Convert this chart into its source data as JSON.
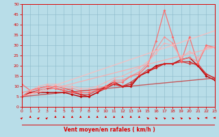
{
  "xlabel": "Vent moyen/en rafales ( km/h )",
  "xlim": [
    0,
    23
  ],
  "ylim": [
    0,
    50
  ],
  "xticks": [
    0,
    1,
    2,
    3,
    4,
    5,
    6,
    7,
    8,
    9,
    10,
    11,
    12,
    13,
    14,
    15,
    16,
    17,
    18,
    19,
    20,
    21,
    22,
    23
  ],
  "yticks": [
    0,
    5,
    10,
    15,
    20,
    25,
    30,
    35,
    40,
    45,
    50
  ],
  "bg_color": "#b8dde8",
  "grid_color": "#8ab8c8",
  "axis_color": "#dd0000",
  "label_color": "#dd0000",
  "lines": [
    {
      "x": [
        0,
        1,
        2,
        3,
        4,
        5,
        6,
        7,
        8,
        9,
        10,
        11,
        12,
        13,
        14,
        15,
        16,
        17,
        18,
        19,
        20,
        21,
        22,
        23
      ],
      "y": [
        5,
        7,
        7,
        7,
        7,
        7,
        6,
        5,
        5,
        7,
        10,
        12,
        10,
        10,
        15,
        17,
        20,
        21,
        21,
        23,
        24,
        20,
        15,
        13
      ],
      "color": "#bb0000",
      "lw": 1.0,
      "marker": "D",
      "ms": 2.0,
      "alpha": 1.0
    },
    {
      "x": [
        0,
        1,
        2,
        3,
        4,
        5,
        6,
        7,
        8,
        9,
        10,
        11,
        12,
        13,
        14,
        15,
        16,
        17,
        18,
        19,
        20,
        21,
        22,
        23
      ],
      "y": [
        5,
        7,
        8,
        9,
        9,
        8,
        7,
        6,
        5,
        7,
        9,
        11,
        10,
        11,
        15,
        17,
        19,
        21,
        21,
        22,
        22,
        20,
        16,
        14
      ],
      "color": "#cc1111",
      "lw": 0.9,
      "marker": "D",
      "ms": 1.8,
      "alpha": 0.9
    },
    {
      "x": [
        0,
        1,
        2,
        3,
        4,
        5,
        6,
        7,
        8,
        9,
        10,
        11,
        12,
        13,
        14,
        15,
        16,
        17,
        18,
        19,
        20,
        21,
        22,
        23
      ],
      "y": [
        5,
        8,
        9,
        10,
        10,
        9,
        8,
        6,
        6,
        8,
        10,
        11,
        10,
        12,
        15,
        18,
        19,
        21,
        21,
        22,
        21,
        21,
        16,
        14
      ],
      "color": "#dd2222",
      "lw": 0.9,
      "marker": "D",
      "ms": 1.8,
      "alpha": 0.8
    },
    {
      "x": [
        0,
        1,
        2,
        3,
        4,
        5,
        6,
        7,
        8,
        9,
        10,
        11,
        12,
        13,
        14,
        15,
        16,
        17,
        18,
        19,
        20,
        21,
        22,
        23
      ],
      "y": [
        11,
        8,
        9,
        10,
        9,
        8,
        7,
        7,
        7,
        8,
        9,
        12,
        12,
        15,
        16,
        20,
        32,
        47,
        34,
        22,
        34,
        21,
        30,
        29
      ],
      "color": "#ff6666",
      "lw": 0.9,
      "marker": "D",
      "ms": 2.0,
      "alpha": 0.9
    },
    {
      "x": [
        0,
        1,
        2,
        3,
        4,
        5,
        6,
        7,
        8,
        9,
        10,
        11,
        12,
        13,
        14,
        15,
        16,
        17,
        18,
        19,
        20,
        21,
        22,
        23
      ],
      "y": [
        7,
        8,
        9,
        10,
        10,
        9,
        9,
        8,
        8,
        9,
        10,
        13,
        13,
        15,
        17,
        21,
        28,
        34,
        31,
        23,
        24,
        22,
        29,
        29
      ],
      "color": "#ff8888",
      "lw": 0.9,
      "marker": "D",
      "ms": 1.8,
      "alpha": 0.8
    },
    {
      "x": [
        0,
        1,
        2,
        3,
        4,
        5,
        6,
        7,
        8,
        9,
        10,
        11,
        12,
        13,
        14,
        15,
        16,
        17,
        18,
        19,
        20,
        21,
        22,
        23
      ],
      "y": [
        5,
        8,
        10,
        11,
        11,
        10,
        10,
        9,
        9,
        10,
        12,
        14,
        15,
        17,
        19,
        22,
        26,
        31,
        30,
        24,
        27,
        24,
        29,
        29
      ],
      "color": "#ffaaaa",
      "lw": 0.9,
      "marker": "D",
      "ms": 1.8,
      "alpha": 0.7
    },
    {
      "x": [
        0,
        23
      ],
      "y": [
        5,
        37
      ],
      "color": "#ffbbbb",
      "lw": 1.0,
      "marker": null,
      "alpha": 0.8
    },
    {
      "x": [
        0,
        23
      ],
      "y": [
        5,
        29
      ],
      "color": "#ffaaaa",
      "lw": 1.0,
      "marker": null,
      "alpha": 0.8
    },
    {
      "x": [
        0,
        23
      ],
      "y": [
        5,
        14
      ],
      "color": "#cc2222",
      "lw": 1.0,
      "marker": null,
      "alpha": 0.7
    }
  ],
  "wind_arrows": {
    "x": [
      0,
      1,
      2,
      3,
      4,
      5,
      6,
      7,
      8,
      9,
      10,
      11,
      12,
      13,
      14,
      15,
      16,
      17,
      18,
      19,
      20,
      21,
      22,
      23
    ],
    "angles": [
      45,
      0,
      45,
      45,
      0,
      0,
      0,
      0,
      0,
      0,
      0,
      0,
      0,
      0,
      0,
      315,
      315,
      315,
      315,
      315,
      315,
      315,
      270,
      270
    ]
  }
}
